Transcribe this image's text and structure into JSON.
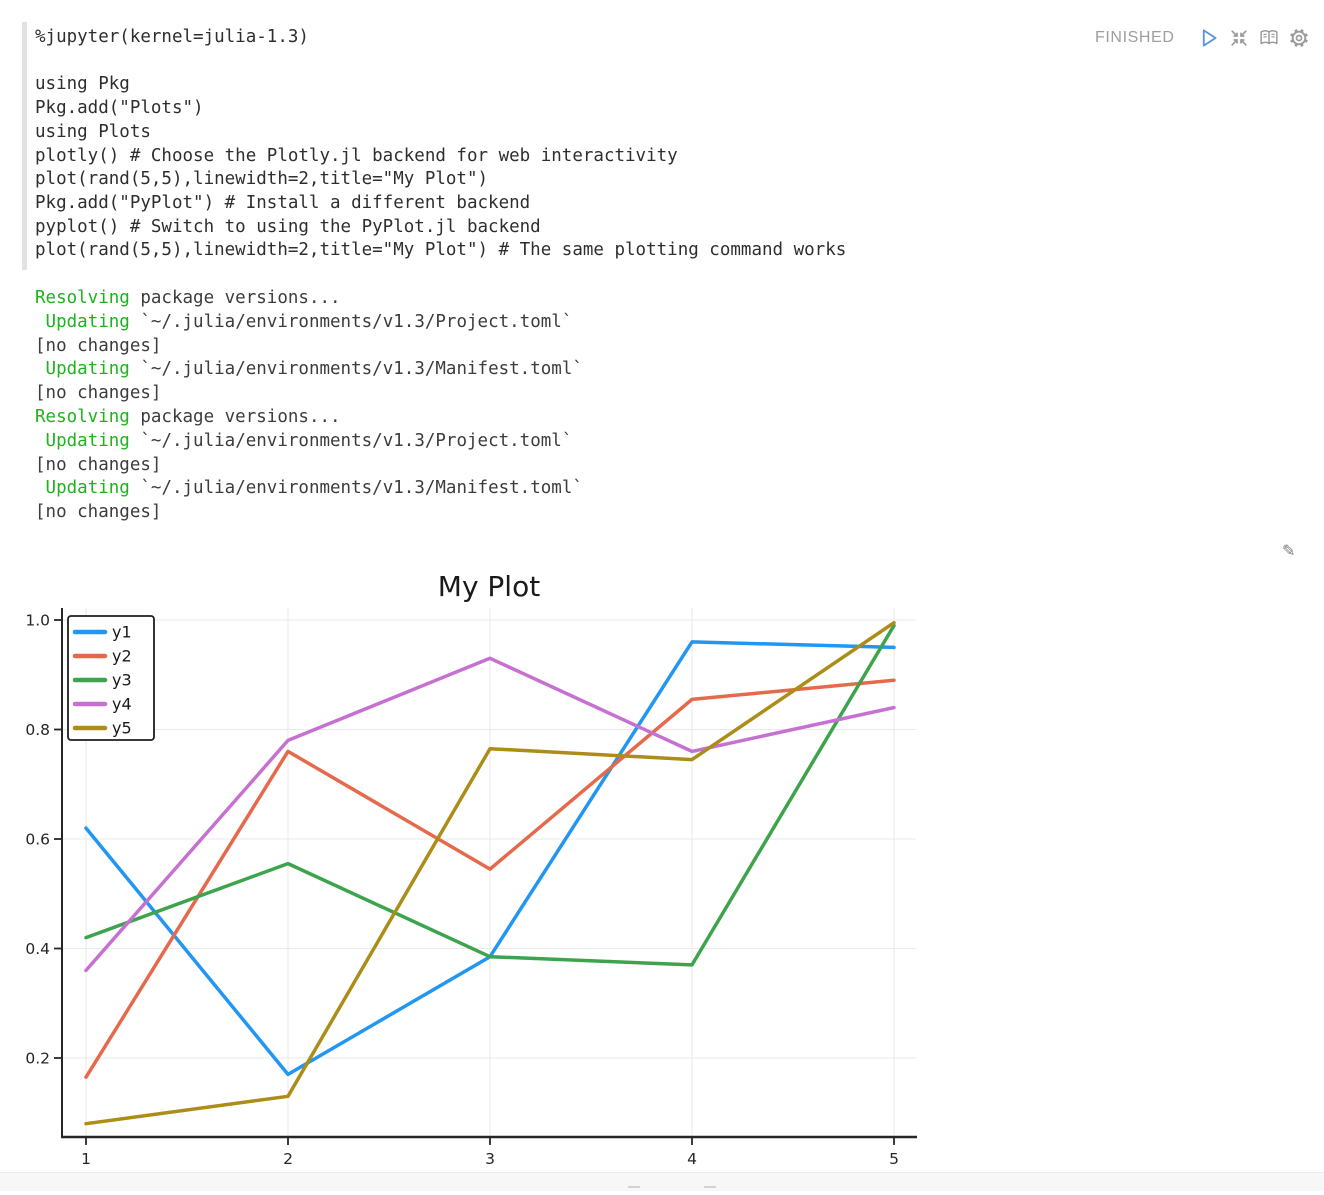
{
  "editor": {
    "code_lines": [
      "%jupyter(kernel=julia-1.3)",
      "",
      "using Pkg",
      "Pkg.add(\"Plots\")",
      "using Plots",
      "plotly() # Choose the Plotly.jl backend for web interactivity",
      "plot(rand(5,5),linewidth=2,title=\"My Plot\")",
      "Pkg.add(\"PyPlot\") # Install a different backend",
      "pyplot() # Switch to using the PyPlot.jl backend",
      "plot(rand(5,5),linewidth=2,title=\"My Plot\") # The same plotting command works"
    ]
  },
  "controls": {
    "status": "FINISHED",
    "run_color": "#5b93d2",
    "icon_color": "#9a9a9a"
  },
  "output": {
    "highlight_color": "#1db31d",
    "text_color": "#3c3c3c",
    "lines": [
      [
        {
          "t": "Resolving",
          "hl": true
        },
        {
          "t": " package versions...",
          "hl": false
        }
      ],
      [
        {
          "t": " ",
          "hl": false
        },
        {
          "t": "Updating",
          "hl": true
        },
        {
          "t": " `~/.julia/environments/v1.3/Project.toml`",
          "hl": false
        }
      ],
      [
        {
          "t": "[no changes]",
          "hl": false
        }
      ],
      [
        {
          "t": " ",
          "hl": false
        },
        {
          "t": "Updating",
          "hl": true
        },
        {
          "t": " `~/.julia/environments/v1.3/Manifest.toml`",
          "hl": false
        }
      ],
      [
        {
          "t": "[no changes]",
          "hl": false
        }
      ],
      [
        {
          "t": "Resolving",
          "hl": true
        },
        {
          "t": " package versions...",
          "hl": false
        }
      ],
      [
        {
          "t": " ",
          "hl": false
        },
        {
          "t": "Updating",
          "hl": true
        },
        {
          "t": " `~/.julia/environments/v1.3/Project.toml`",
          "hl": false
        }
      ],
      [
        {
          "t": "[no changes]",
          "hl": false
        }
      ],
      [
        {
          "t": " ",
          "hl": false
        },
        {
          "t": "Updating",
          "hl": true
        },
        {
          "t": " `~/.julia/environments/v1.3/Manifest.toml`",
          "hl": false
        }
      ],
      [
        {
          "t": "[no changes]",
          "hl": false
        }
      ]
    ]
  },
  "edit_icon": "✎",
  "chart_data": {
    "type": "line",
    "title": "My Plot",
    "x": [
      1,
      2,
      3,
      4,
      5
    ],
    "series": [
      {
        "name": "y1",
        "color": "#2196F3",
        "values": [
          0.62,
          0.17,
          0.385,
          0.96,
          0.95
        ]
      },
      {
        "name": "y2",
        "color": "#E5694B",
        "values": [
          0.165,
          0.76,
          0.545,
          0.855,
          0.89
        ]
      },
      {
        "name": "y3",
        "color": "#3DA44D",
        "values": [
          0.42,
          0.555,
          0.385,
          0.37,
          0.99
        ]
      },
      {
        "name": "y4",
        "color": "#C671D2",
        "values": [
          0.36,
          0.78,
          0.93,
          0.76,
          0.84
        ]
      },
      {
        "name": "y5",
        "color": "#AC8D18",
        "values": [
          0.08,
          0.13,
          0.765,
          0.745,
          0.995
        ]
      }
    ],
    "xticks": [
      1,
      2,
      3,
      4,
      5
    ],
    "yticks": [
      0.2,
      0.4,
      0.6,
      0.8,
      1.0
    ],
    "xlim": [
      0.88,
      5.1
    ],
    "ylim": [
      0.056,
      1.02
    ],
    "grid": true,
    "legend_position": "top-left",
    "linewidth": 2,
    "title_color": "#1a1a1a",
    "tick_color": "#262626",
    "grid_color": "#eaeaea",
    "spine_color": "#262626"
  }
}
